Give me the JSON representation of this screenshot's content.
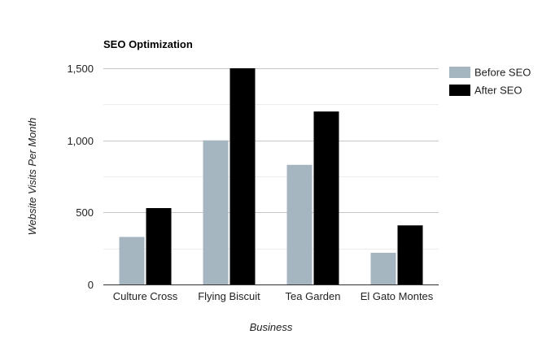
{
  "chart_data": {
    "type": "bar",
    "title": "SEO Optimization",
    "xlabel": "Business",
    "ylabel": "Website Visits Per Month",
    "categories": [
      "Culture Cross",
      "Flying Biscuit",
      "Tea Garden",
      "El Gato Montes"
    ],
    "series": [
      {
        "name": "Before SEO",
        "values": [
          330,
          1000,
          830,
          220
        ],
        "color": "#a5b6c1"
      },
      {
        "name": "After SEO",
        "values": [
          530,
          1500,
          1200,
          410
        ],
        "color": "#000000"
      }
    ],
    "ylim": [
      0,
      1500
    ],
    "yticks": [
      0,
      500,
      1000,
      1500
    ],
    "ytick_labels": [
      "0",
      "500",
      "1,000",
      "1,500"
    ],
    "minor_gridlines": [
      250,
      750,
      1250
    ],
    "grid": true,
    "legend_position": "right"
  }
}
